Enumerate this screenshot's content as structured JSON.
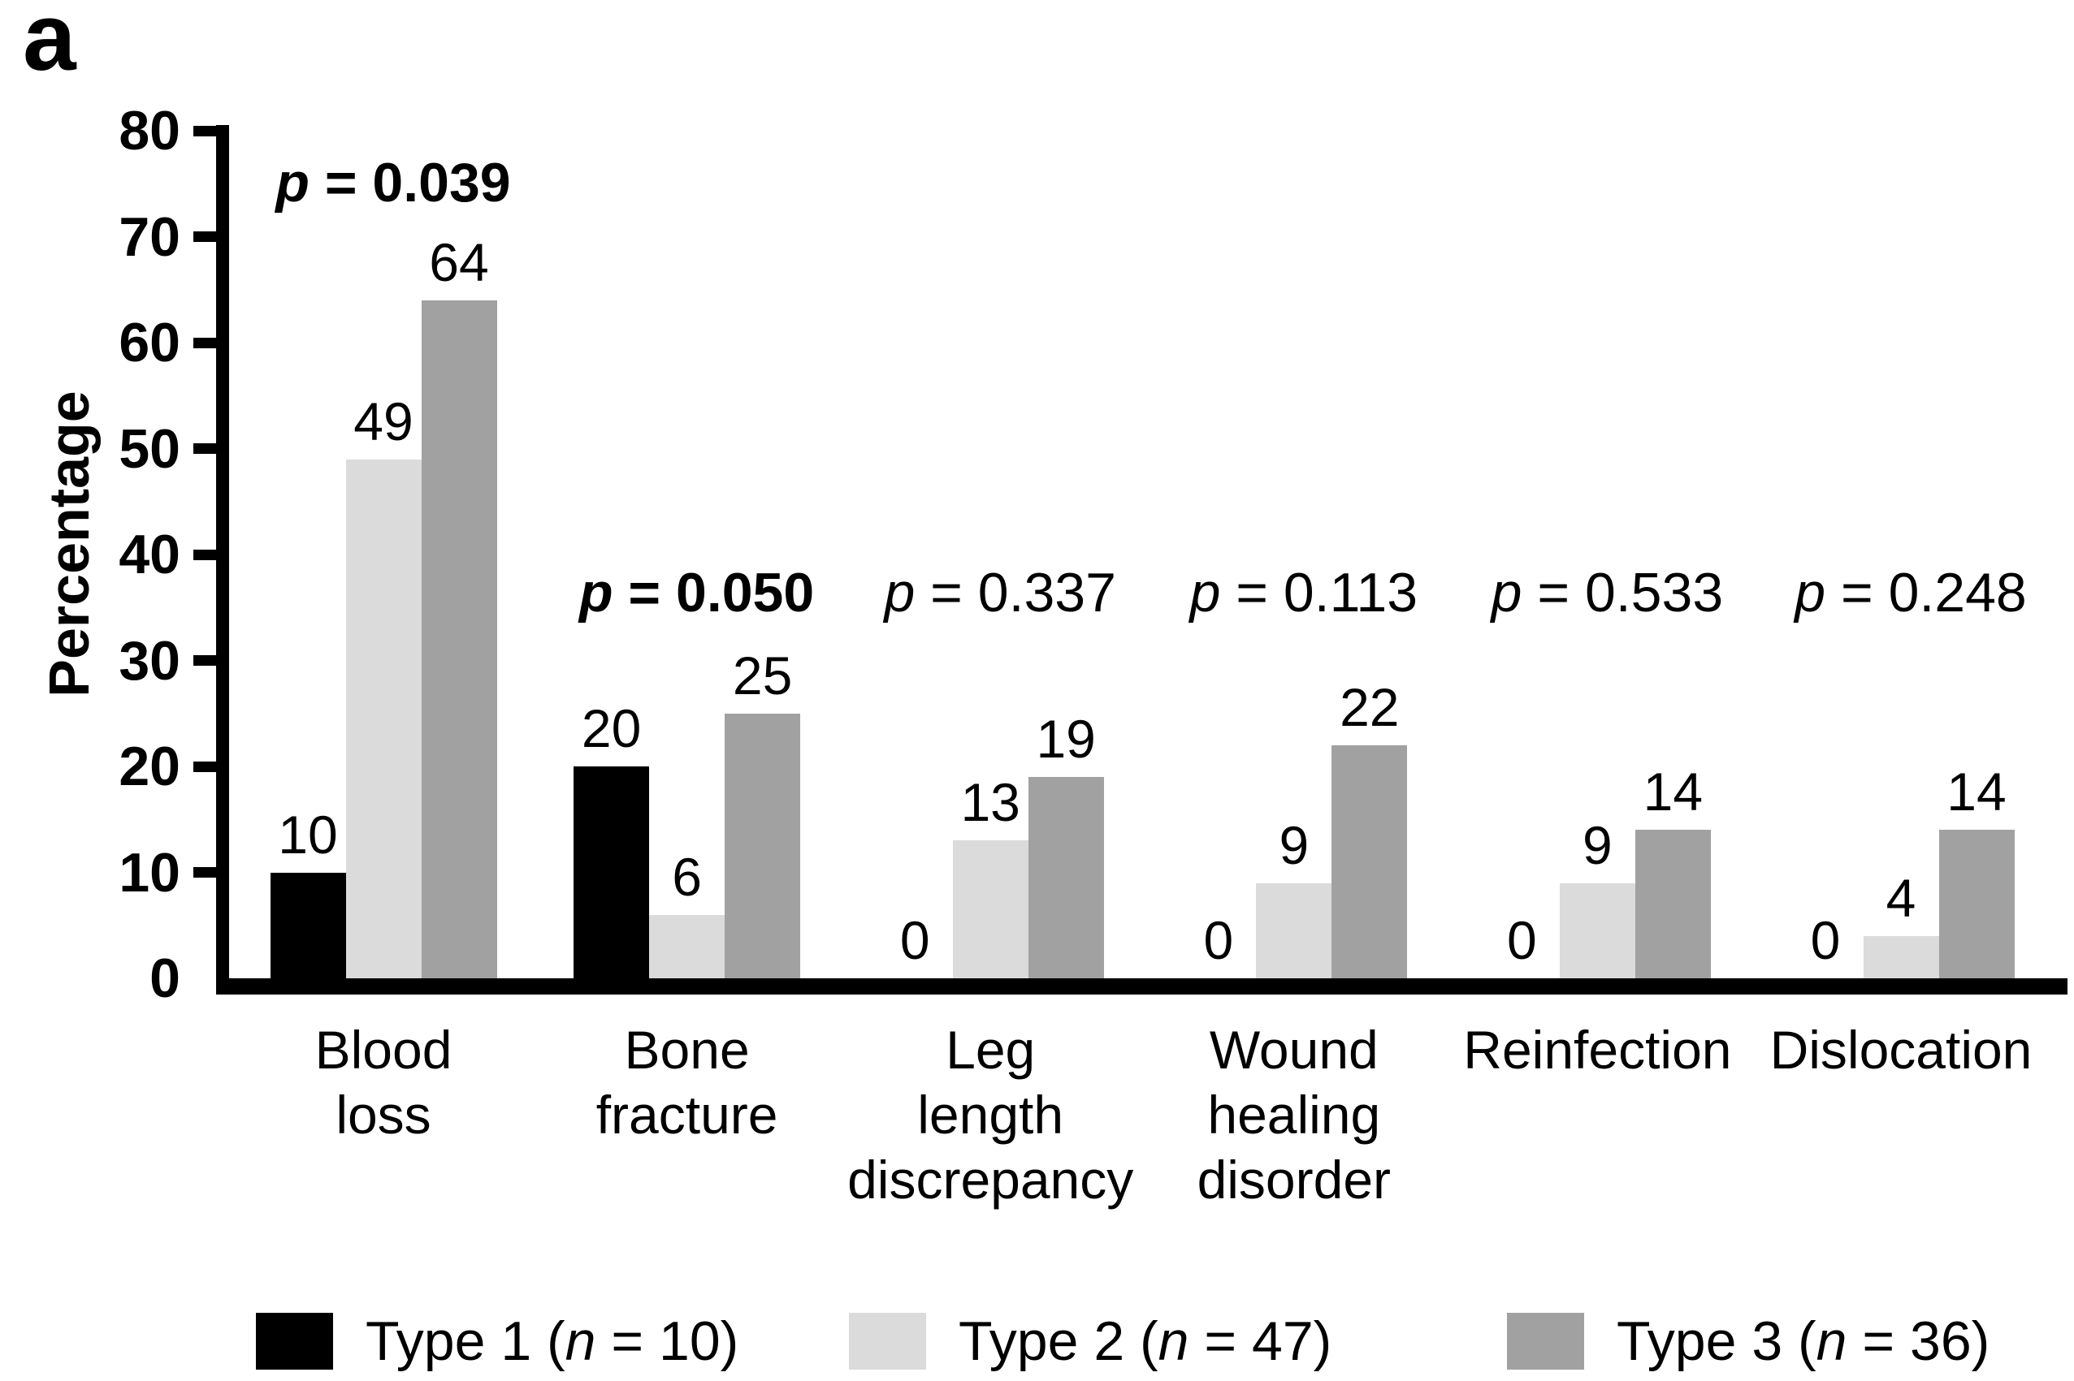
{
  "panel_label": "a",
  "chart_data": {
    "type": "bar",
    "title": "",
    "xlabel": "",
    "ylabel": "Percentage",
    "ylim": [
      0,
      80
    ],
    "yticks": [
      0,
      10,
      20,
      30,
      40,
      50,
      60,
      70,
      80
    ],
    "grid": false,
    "legend_position": "bottom",
    "categories": [
      {
        "key": "blood-loss",
        "lines": [
          "Blood",
          "loss"
        ]
      },
      {
        "key": "bone-fracture",
        "lines": [
          "Bone",
          "fracture"
        ]
      },
      {
        "key": "leg-length-discrepancy",
        "lines": [
          "Leg",
          "length",
          "discrepancy"
        ]
      },
      {
        "key": "wound-healing-disorder",
        "lines": [
          "Wound",
          "healing",
          "disorder"
        ]
      },
      {
        "key": "reinfection",
        "lines": [
          "Reinfection"
        ]
      },
      {
        "key": "dislocation",
        "lines": [
          "Dislocation"
        ]
      }
    ],
    "series": [
      {
        "key": "type-1",
        "name": "Type 1 (n = 10)",
        "name_parts": [
          {
            "t": "Type 1 ("
          },
          {
            "t": "n",
            "italic": true
          },
          {
            "t": " = 10)"
          }
        ],
        "color": "#000000",
        "values": [
          10,
          20,
          0,
          0,
          0,
          0
        ]
      },
      {
        "key": "type-2",
        "name": "Type 2 (n = 47)",
        "name_parts": [
          {
            "t": "Type 2 ("
          },
          {
            "t": "n",
            "italic": true
          },
          {
            "t": " = 47)"
          }
        ],
        "color": "#dbdbdb",
        "values": [
          49,
          6,
          13,
          9,
          9,
          4
        ]
      },
      {
        "key": "type-3",
        "name": "Type 3 (n = 36)",
        "name_parts": [
          {
            "t": "Type 3 ("
          },
          {
            "t": "n",
            "italic": true
          },
          {
            "t": " = 36)"
          }
        ],
        "color": "#a1a1a1",
        "values": [
          64,
          25,
          19,
          22,
          14,
          14
        ]
      }
    ],
    "p_values": [
      {
        "symbol": "p",
        "rest": " = 0.039",
        "bold": true
      },
      {
        "symbol": "p",
        "rest": " = 0.050",
        "bold": true
      },
      {
        "symbol": "p",
        "rest": " = 0.337",
        "bold": false
      },
      {
        "symbol": "p",
        "rest": " = 0.113",
        "bold": false
      },
      {
        "symbol": "p",
        "rest": " = 0.533",
        "bold": false
      },
      {
        "symbol": "p",
        "rest": " = 0.248",
        "bold": false
      }
    ]
  }
}
